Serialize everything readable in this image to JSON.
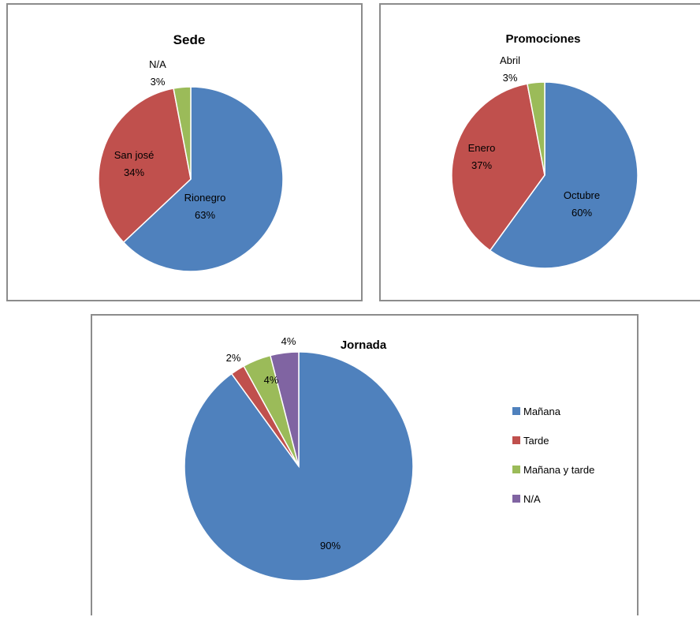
{
  "chart_data": [
    {
      "type": "pie",
      "title": "Sede",
      "categories": [
        "Rionegro",
        "San josé",
        "N/A"
      ],
      "values": [
        63,
        34,
        3
      ],
      "value_labels": [
        "63%",
        "34%",
        "3%"
      ],
      "colors": [
        "#4f81bd",
        "#c0504d",
        "#9bbb59"
      ],
      "legend": "none",
      "label_style": "category and percent"
    },
    {
      "type": "pie",
      "title": "Promociones",
      "categories": [
        "Octubre",
        "Enero",
        "Abril"
      ],
      "values": [
        60,
        37,
        3
      ],
      "value_labels": [
        "60%",
        "37%",
        "3%"
      ],
      "colors": [
        "#4f81bd",
        "#c0504d",
        "#9bbb59"
      ],
      "legend": "none",
      "label_style": "category and percent"
    },
    {
      "type": "pie",
      "title": "Jornada",
      "categories": [
        "Mañana",
        "Tarde",
        "Mañana y tarde",
        "N/A"
      ],
      "values": [
        90,
        2,
        4,
        4
      ],
      "value_labels": [
        "90%",
        "2%",
        "4%",
        "4%"
      ],
      "colors": [
        "#4f81bd",
        "#c0504d",
        "#9bbb59",
        "#8064a2"
      ],
      "legend": "right",
      "label_style": "percent"
    }
  ]
}
